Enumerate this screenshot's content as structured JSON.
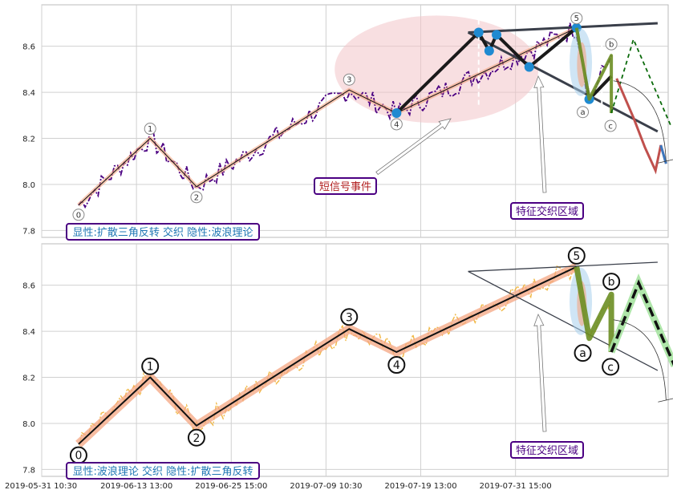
{
  "chart_data": [
    {
      "type": "line",
      "panel": "top",
      "ylim": [
        7.77,
        8.78
      ],
      "yticks": [
        "7.8",
        "8.0",
        "8.2",
        "8.4",
        "8.6"
      ],
      "grid": true,
      "price_color": "#4b0082",
      "wave_points": [
        {
          "label": "0",
          "x": 0.5,
          "y": 7.91
        },
        {
          "label": "1",
          "x": 7.3,
          "y": 8.2
        },
        {
          "label": "2",
          "x": 11.7,
          "y": 7.99
        },
        {
          "label": "3",
          "x": 26.2,
          "y": 8.41
        },
        {
          "label": "4",
          "x": 30.7,
          "y": 8.31
        },
        {
          "label": "5",
          "x": 47.8,
          "y": 8.68
        }
      ],
      "abc_points": [
        {
          "label": "a",
          "x": 49.0,
          "y": 8.37
        },
        {
          "label": "b",
          "x": 51.1,
          "y": 8.56
        },
        {
          "label": "c",
          "x": 51.1,
          "y": 8.31
        }
      ],
      "annotations": [
        {
          "text": "短信号事件",
          "color": "#b22222",
          "border": "#4b0082"
        },
        {
          "text": "特征交织区域",
          "color": "#4b0082",
          "border": "#4b0082"
        }
      ],
      "caption": "显性:扩散三角反转 交织 隐性:波浪理论",
      "caption_color": "#1f77b4"
    },
    {
      "type": "line",
      "panel": "bottom",
      "ylim": [
        7.77,
        8.78
      ],
      "yticks": [
        "7.8",
        "8.0",
        "8.2",
        "8.4",
        "8.6"
      ],
      "grid": true,
      "price_color": "#f0b030",
      "wave_points": [
        {
          "label": "0",
          "x": 0.5,
          "y": 7.91
        },
        {
          "label": "1",
          "x": 7.3,
          "y": 8.2
        },
        {
          "label": "2",
          "x": 11.7,
          "y": 7.99
        },
        {
          "label": "3",
          "x": 26.2,
          "y": 8.41
        },
        {
          "label": "4",
          "x": 30.7,
          "y": 8.31
        },
        {
          "label": "5",
          "x": 47.8,
          "y": 8.68
        }
      ],
      "abc_points": [
        {
          "label": "a",
          "x": 49.0,
          "y": 8.37
        },
        {
          "label": "b",
          "x": 51.1,
          "y": 8.56
        },
        {
          "label": "c",
          "x": 51.1,
          "y": 8.31
        }
      ],
      "annotations": [
        {
          "text": "特征交织区域",
          "color": "#4b0082",
          "border": "#4b0082"
        }
      ],
      "caption": "显性:波浪理论 交织 隐性:扩散三角反转",
      "caption_color": "#1f77b4"
    }
  ],
  "x_ticks": [
    {
      "label": "2019-05-31 10:30",
      "x": -3
    },
    {
      "label": "2019-06-13 13:00",
      "x": 6
    },
    {
      "label": "2019-06-25 15:00",
      "x": 15
    },
    {
      "label": "2019-07-09 10:30",
      "x": 24
    },
    {
      "label": "2019-07-19 13:00",
      "x": 33
    },
    {
      "label": "2019-07-31 15:00",
      "x": 42
    }
  ],
  "xlim": [
    -3,
    56.5
  ],
  "colors": {
    "wave_line": "#111111",
    "wave_band": "#f4a582",
    "abc_band": "#6b8e23",
    "projection": "#1a7a1a",
    "highlight_ellipse": "#f2c4c8",
    "pivot_marker": "#1f8ad1"
  }
}
